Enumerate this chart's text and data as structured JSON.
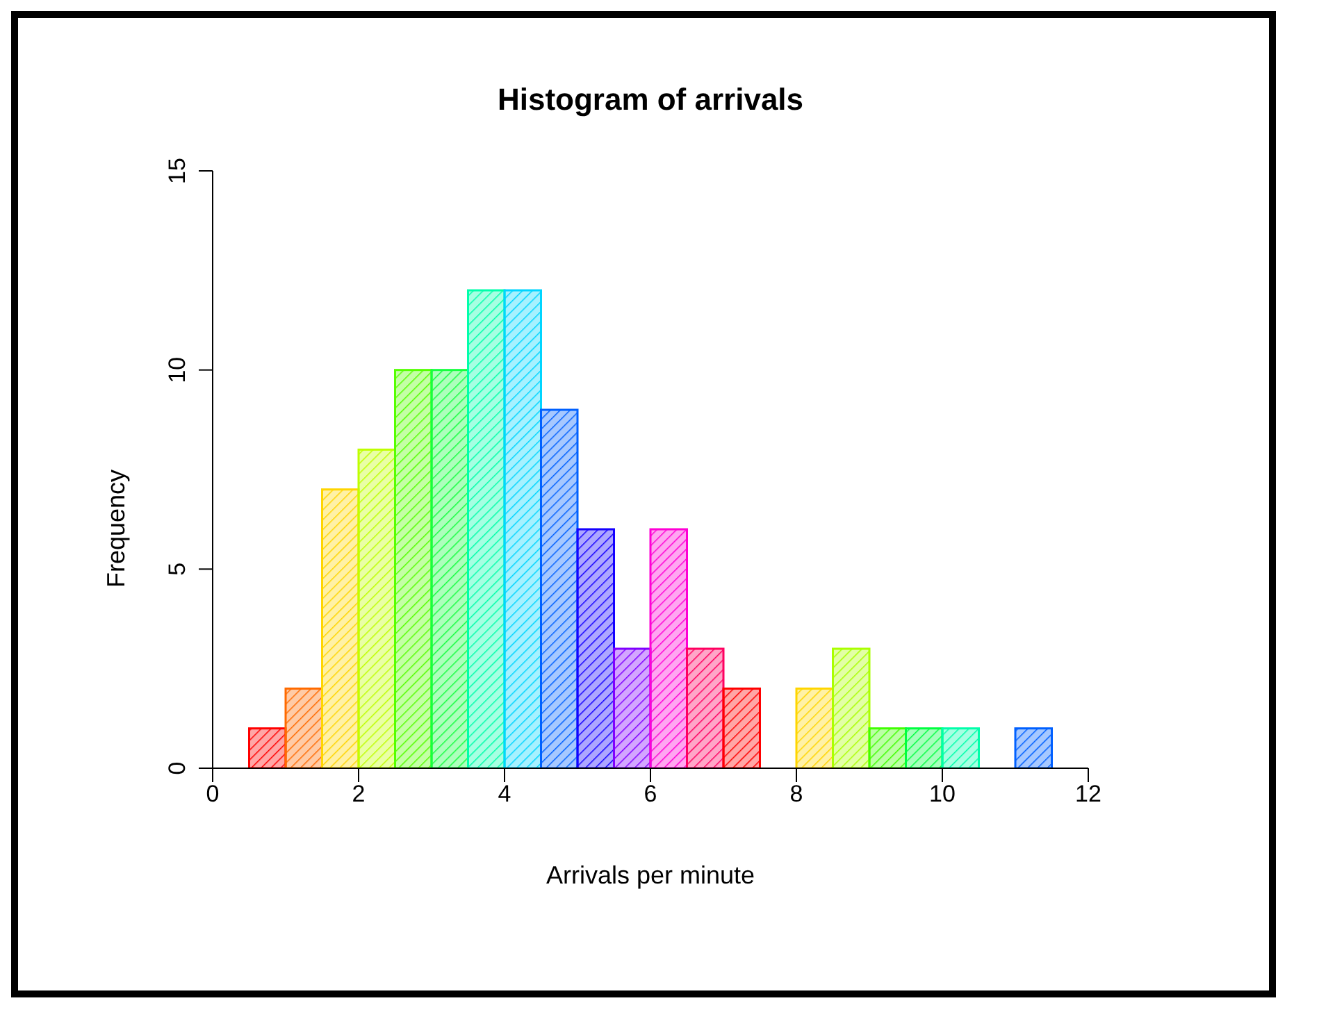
{
  "chart_data": {
    "type": "histogram",
    "title": "Histogram of arrivals",
    "xlabel": "Arrivals per minute",
    "ylabel": "Frequency",
    "bins": [
      0.5,
      1,
      1.5,
      2,
      2.5,
      3,
      3.5,
      4,
      4.5,
      5,
      5.5,
      6,
      6.5,
      7,
      7.5,
      8,
      8.5,
      9,
      9.5,
      10,
      10.5,
      11,
      11.5
    ],
    "values": [
      1,
      2,
      7,
      8,
      10,
      10,
      12,
      12,
      9,
      6,
      3,
      6,
      3,
      2,
      0,
      2,
      3,
      1,
      1,
      1,
      0,
      1
    ],
    "colors": [
      "#ff0000",
      "#ff6a00",
      "#ffd500",
      "#bfff00",
      "#55ff00",
      "#15ff40",
      "#00ffaa",
      "#00d5ff",
      "#0060ff",
      "#1500ff",
      "#8000ff",
      "#ff00d5",
      "#ff0060",
      "#ff0000",
      "#ff6a00",
      "#ffd500",
      "#aaff00",
      "#40ff00",
      "#00ff40",
      "#00ffaa",
      "#00d5ff",
      "#0060ff"
    ],
    "xlim": [
      0,
      12
    ],
    "xticks": [
      0,
      2,
      4,
      6,
      8,
      10,
      12
    ],
    "ylim": [
      0,
      15
    ],
    "yticks": [
      0,
      5,
      10,
      15
    ],
    "grid": false,
    "legend": false
  }
}
